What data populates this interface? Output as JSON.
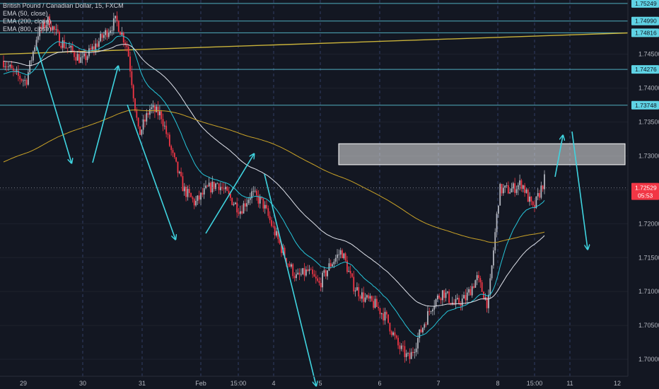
{
  "symbol": {
    "title": "British Pound / Canadian Dollar, 15, FXCM"
  },
  "indicators": [
    {
      "label": "EMA (50, close)",
      "color": "#26c6da"
    },
    {
      "label": "EMA (200, close)",
      "color": "#e0e3eb"
    },
    {
      "label": "EMA (800, close)",
      "color": "#c9a227"
    }
  ],
  "price_tag": {
    "value": "1.72529",
    "countdown": "05:53",
    "color": "#f23645"
  },
  "level_tags": [
    "1.75249",
    "1.74990",
    "1.74816",
    "1.74276",
    "1.73748"
  ],
  "colors": {
    "background": "#131722",
    "grid": "#2a2e39",
    "up_candle": "#b2b5be",
    "down_candle": "#f23645",
    "level_lines": "#5fd3e5",
    "trend_line": "#c9b23a",
    "arrows": "#3fd4e0",
    "zone": "#e8e8e8"
  },
  "chart_data": {
    "type": "candlestick",
    "title": "British Pound / Canadian Dollar, 15, FXCM",
    "ylim": [
      1.6975,
      1.753
    ],
    "y_ticks": [
      1.7,
      1.705,
      1.71,
      1.715,
      1.72,
      1.725,
      1.73,
      1.735,
      1.74,
      1.745
    ],
    "x_tick_labels": [
      "29",
      "30",
      "31",
      "Feb",
      "15:00",
      "4",
      "5",
      "6",
      "7",
      "8",
      "15:00",
      "11",
      "12"
    ],
    "price_path": [
      1.744,
      1.742,
      1.741,
      1.748,
      1.75,
      1.747,
      1.7455,
      1.744,
      1.746,
      1.748,
      1.75,
      1.746,
      1.733,
      1.737,
      1.736,
      1.73,
      1.725,
      1.723,
      1.725,
      1.726,
      1.724,
      1.722,
      1.7245,
      1.723,
      1.719,
      1.715,
      1.712,
      1.713,
      1.711,
      1.714,
      1.716,
      1.711,
      1.709,
      1.708,
      1.706,
      1.702,
      1.7,
      1.704,
      1.708,
      1.71,
      1.708,
      1.709,
      1.712,
      1.708,
      1.725,
      1.725,
      1.726,
      1.722,
      1.7265
    ],
    "ema_50_endpoints": [
      1.742,
      1.724
    ],
    "ema_200_endpoints": [
      1.744,
      1.718
    ],
    "ema_800_endpoints": [
      1.729,
      1.718
    ],
    "horizontal_levels": [
      1.75249,
      1.7499,
      1.74816,
      1.74276,
      1.73748
    ],
    "trend_line": {
      "start": 1.745,
      "end": 1.74816
    },
    "resistance_zone": {
      "low": 1.7287,
      "high": 1.7318
    },
    "last_price": 1.72529,
    "grid": true
  }
}
